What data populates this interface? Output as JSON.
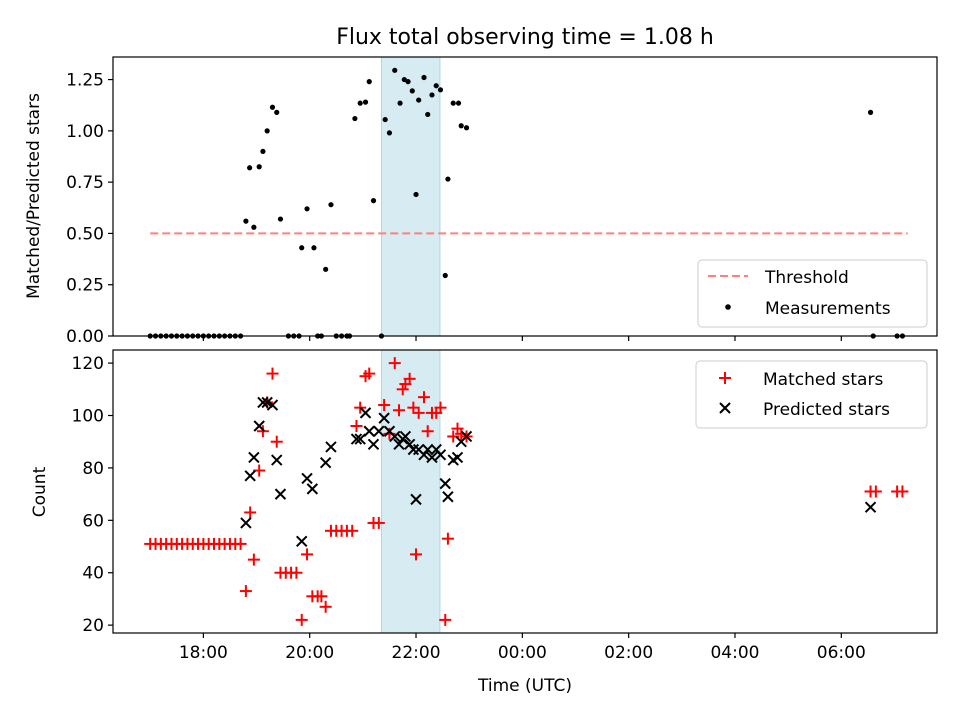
{
  "chart_data": [
    {
      "type": "scatter",
      "title": "Flux total observing time = 1.08 h",
      "ylabel": "Matched/Predicted stars",
      "xlabel": "",
      "xlim": [
        16.3,
        31.8
      ],
      "ylim": [
        0,
        1.36
      ],
      "yticks": [
        "0.00",
        "0.25",
        "0.50",
        "0.75",
        "1.00",
        "1.25"
      ],
      "ytick_values": [
        0,
        0.25,
        0.5,
        0.75,
        1.0,
        1.25
      ],
      "legend_position": "lower-right",
      "shaded_span": {
        "x0": 21.35,
        "x1": 22.45,
        "color": "#add8e6"
      },
      "threshold": {
        "name": "Threshold",
        "value": 0.5,
        "x0": 17.0,
        "x1": 31.25,
        "color": "#ff7f7f",
        "style": "dashed"
      },
      "series": [
        {
          "name": "Measurements",
          "marker": "dot",
          "color": "#000000",
          "points": [
            [
              17.0,
              0
            ],
            [
              17.1,
              0
            ],
            [
              17.2,
              0
            ],
            [
              17.3,
              0
            ],
            [
              17.4,
              0
            ],
            [
              17.5,
              0
            ],
            [
              17.6,
              0
            ],
            [
              17.7,
              0
            ],
            [
              17.8,
              0
            ],
            [
              17.9,
              0
            ],
            [
              18.0,
              0
            ],
            [
              18.1,
              0
            ],
            [
              18.2,
              0
            ],
            [
              18.3,
              0
            ],
            [
              18.4,
              0
            ],
            [
              18.5,
              0
            ],
            [
              18.6,
              0
            ],
            [
              18.7,
              0
            ],
            [
              18.8,
              0.56
            ],
            [
              18.87,
              0.82
            ],
            [
              18.95,
              0.53
            ],
            [
              19.05,
              0.825
            ],
            [
              19.12,
              0.9
            ],
            [
              19.2,
              1.0
            ],
            [
              19.3,
              1.115
            ],
            [
              19.38,
              1.09
            ],
            [
              19.45,
              0.57
            ],
            [
              19.6,
              0
            ],
            [
              19.7,
              0
            ],
            [
              19.8,
              0
            ],
            [
              19.85,
              0.43
            ],
            [
              19.95,
              0.62
            ],
            [
              20.08,
              0.43
            ],
            [
              20.15,
              0
            ],
            [
              20.22,
              0
            ],
            [
              20.3,
              0.325
            ],
            [
              20.4,
              0.64
            ],
            [
              20.5,
              0
            ],
            [
              20.6,
              0
            ],
            [
              20.7,
              0
            ],
            [
              20.75,
              0
            ],
            [
              20.85,
              1.06
            ],
            [
              20.95,
              1.135
            ],
            [
              21.05,
              1.14
            ],
            [
              21.12,
              1.24
            ],
            [
              21.2,
              0.66
            ],
            [
              21.35,
              0
            ],
            [
              21.42,
              1.055
            ],
            [
              21.5,
              0.99
            ],
            [
              21.6,
              1.295
            ],
            [
              21.7,
              1.135
            ],
            [
              21.78,
              1.25
            ],
            [
              21.85,
              1.24
            ],
            [
              21.93,
              1.195
            ],
            [
              22.0,
              0.69
            ],
            [
              22.05,
              1.15
            ],
            [
              22.15,
              1.26
            ],
            [
              22.22,
              1.08
            ],
            [
              22.3,
              1.175
            ],
            [
              22.38,
              1.22
            ],
            [
              22.46,
              1.2
            ],
            [
              22.55,
              0.295
            ],
            [
              22.6,
              0.765
            ],
            [
              22.7,
              1.135
            ],
            [
              22.8,
              1.135
            ],
            [
              22.85,
              1.025
            ],
            [
              22.95,
              1.015
            ],
            [
              30.55,
              1.09
            ],
            [
              30.6,
              0
            ],
            [
              31.05,
              0
            ],
            [
              31.15,
              0
            ]
          ]
        }
      ]
    },
    {
      "type": "scatter",
      "title": "",
      "ylabel": "Count",
      "xlabel": "Time (UTC)",
      "xlim": [
        16.3,
        31.8
      ],
      "ylim": [
        17,
        125
      ],
      "yticks": [
        "20",
        "40",
        "60",
        "80",
        "100",
        "120"
      ],
      "ytick_values": [
        20,
        40,
        60,
        80,
        100,
        120
      ],
      "xticks": [
        "18:00",
        "20:00",
        "22:00",
        "00:00",
        "02:00",
        "04:00",
        "06:00"
      ],
      "xtick_values": [
        18,
        20,
        22,
        24,
        26,
        28,
        30
      ],
      "legend_position": "top-right",
      "shaded_span": {
        "x0": 21.35,
        "x1": 22.45,
        "color": "#add8e6"
      },
      "series": [
        {
          "name": "Matched stars",
          "marker": "plus",
          "color": "#ff0000",
          "points": [
            [
              17.0,
              51
            ],
            [
              17.1,
              51
            ],
            [
              17.2,
              51
            ],
            [
              17.3,
              51
            ],
            [
              17.4,
              51
            ],
            [
              17.5,
              51
            ],
            [
              17.6,
              51
            ],
            [
              17.7,
              51
            ],
            [
              17.8,
              51
            ],
            [
              17.9,
              51
            ],
            [
              18.0,
              51
            ],
            [
              18.1,
              51
            ],
            [
              18.2,
              51
            ],
            [
              18.3,
              51
            ],
            [
              18.4,
              51
            ],
            [
              18.5,
              51
            ],
            [
              18.6,
              51
            ],
            [
              18.7,
              51
            ],
            [
              18.8,
              33
            ],
            [
              18.88,
              63
            ],
            [
              18.95,
              45
            ],
            [
              19.05,
              79
            ],
            [
              19.12,
              94
            ],
            [
              19.2,
              105
            ],
            [
              19.3,
              116
            ],
            [
              19.38,
              90
            ],
            [
              19.45,
              40
            ],
            [
              19.55,
              40
            ],
            [
              19.65,
              40
            ],
            [
              19.75,
              40
            ],
            [
              19.85,
              22
            ],
            [
              19.95,
              47
            ],
            [
              20.05,
              31
            ],
            [
              20.15,
              31
            ],
            [
              20.22,
              31
            ],
            [
              20.3,
              27
            ],
            [
              20.4,
              56
            ],
            [
              20.5,
              56
            ],
            [
              20.6,
              56
            ],
            [
              20.7,
              56
            ],
            [
              20.8,
              56
            ],
            [
              20.88,
              96
            ],
            [
              20.95,
              103
            ],
            [
              21.05,
              115
            ],
            [
              21.12,
              116
            ],
            [
              21.2,
              59
            ],
            [
              21.3,
              59
            ],
            [
              21.4,
              104
            ],
            [
              21.5,
              93
            ],
            [
              21.6,
              120
            ],
            [
              21.68,
              102
            ],
            [
              21.75,
              110
            ],
            [
              21.8,
              112
            ],
            [
              21.88,
              114
            ],
            [
              21.95,
              103
            ],
            [
              22.0,
              47
            ],
            [
              22.05,
              101
            ],
            [
              22.15,
              107
            ],
            [
              22.22,
              94
            ],
            [
              22.3,
              101
            ],
            [
              22.38,
              101
            ],
            [
              22.46,
              103
            ],
            [
              22.55,
              22
            ],
            [
              22.6,
              53
            ],
            [
              22.7,
              92
            ],
            [
              22.78,
              95
            ],
            [
              22.85,
              93
            ],
            [
              22.95,
              92
            ],
            [
              30.55,
              71
            ],
            [
              30.65,
              71
            ],
            [
              31.05,
              71
            ],
            [
              31.15,
              71
            ]
          ]
        },
        {
          "name": "Predicted stars",
          "marker": "x",
          "color": "#000000",
          "points": [
            [
              18.8,
              59
            ],
            [
              18.88,
              77
            ],
            [
              18.95,
              84
            ],
            [
              19.05,
              96
            ],
            [
              19.12,
              105
            ],
            [
              19.2,
              105
            ],
            [
              19.3,
              104
            ],
            [
              19.38,
              83
            ],
            [
              19.45,
              70
            ],
            [
              19.85,
              52
            ],
            [
              19.95,
              76
            ],
            [
              20.05,
              72
            ],
            [
              20.3,
              82
            ],
            [
              20.4,
              88
            ],
            [
              20.88,
              91
            ],
            [
              20.95,
              91
            ],
            [
              21.05,
              101
            ],
            [
              21.12,
              94
            ],
            [
              21.2,
              89
            ],
            [
              21.3,
              94
            ],
            [
              21.4,
              99
            ],
            [
              21.5,
              94
            ],
            [
              21.6,
              92
            ],
            [
              21.68,
              89
            ],
            [
              21.75,
              91
            ],
            [
              21.8,
              92
            ],
            [
              21.88,
              89
            ],
            [
              21.95,
              87
            ],
            [
              22.0,
              68
            ],
            [
              22.05,
              87
            ],
            [
              22.15,
              85
            ],
            [
              22.22,
              87
            ],
            [
              22.3,
              84
            ],
            [
              22.38,
              87
            ],
            [
              22.46,
              85
            ],
            [
              22.55,
              74
            ],
            [
              22.6,
              69
            ],
            [
              22.7,
              83
            ],
            [
              22.78,
              84
            ],
            [
              22.85,
              90
            ],
            [
              22.95,
              92
            ],
            [
              30.55,
              65
            ]
          ]
        }
      ]
    }
  ]
}
